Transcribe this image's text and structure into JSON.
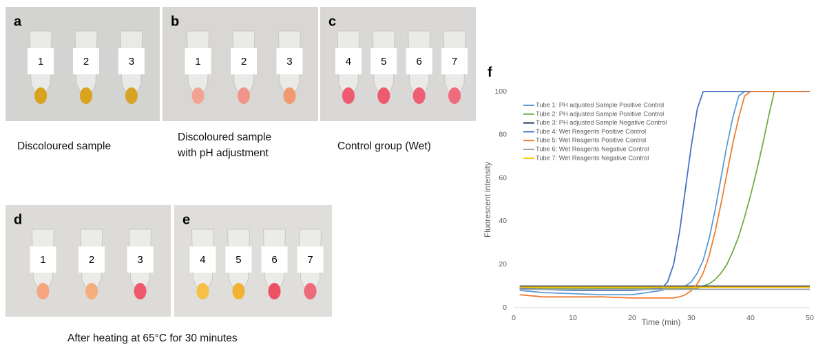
{
  "panels": [
    {
      "label": "a",
      "tubes": [
        "1",
        "2",
        "3"
      ]
    },
    {
      "label": "b",
      "tubes": [
        "1",
        "2",
        "3"
      ]
    },
    {
      "label": "c",
      "tubes": [
        "4",
        "5",
        "6",
        "7"
      ]
    },
    {
      "label": "d",
      "tubes": [
        "1",
        "2",
        "3"
      ]
    },
    {
      "label": "e",
      "tubes": [
        "4",
        "5",
        "6",
        "7"
      ]
    }
  ],
  "captions": [
    [
      "Discoloured sample"
    ],
    [
      "Discoloured  sample",
      "with pH adjustment"
    ],
    [
      "Control group (Wet)"
    ],
    [
      "After heating at 65°C for 30 minutes"
    ]
  ],
  "chart_data": {
    "type": "line",
    "panel_label": "f",
    "x_label": "Time (min)",
    "y_label": "Fluorescent intensity",
    "x": [
      1,
      5,
      10,
      15,
      20,
      25,
      26,
      27,
      28,
      29,
      30,
      31,
      32,
      33,
      34,
      35,
      36,
      37,
      38,
      39,
      40,
      41,
      42,
      43,
      44,
      45,
      50
    ],
    "xlim": [
      0,
      50
    ],
    "xticks": [
      0,
      10,
      20,
      30,
      40,
      50
    ],
    "ylim": [
      0,
      100
    ],
    "yticks": [
      0,
      20,
      40,
      60,
      80,
      100
    ],
    "series": [
      {
        "name": "Tube 1: PH adjusted Sample Positive Control",
        "color": "#5b9bd5",
        "values": [
          8,
          7,
          6.5,
          6,
          6,
          8,
          9,
          9,
          9,
          10,
          12,
          16,
          22,
          32,
          45,
          60,
          75,
          88,
          98,
          100,
          100,
          100,
          100,
          100,
          100,
          100,
          100
        ]
      },
      {
        "name": "Tube 2: PH adjusted Sample Positive Control",
        "color": "#70ad47",
        "values": [
          9,
          9,
          9,
          9,
          9,
          9,
          9,
          9,
          9,
          9,
          9,
          9,
          10,
          11,
          13,
          16,
          20,
          26,
          33,
          42,
          52,
          63,
          75,
          88,
          100,
          100,
          100
        ]
      },
      {
        "name": "Tube 3: PH adjusted Sample Negative Control",
        "color": "#1f3864",
        "values": [
          10,
          10,
          10,
          10,
          10,
          10,
          10,
          10,
          10,
          10,
          10,
          10,
          10,
          10,
          10,
          10,
          10,
          10,
          10,
          10,
          10,
          10,
          10,
          10,
          10,
          10,
          10
        ]
      },
      {
        "name": "Tube 4: Wet Reagents Positive Control",
        "color": "#4472c4",
        "values": [
          9,
          8.5,
          8,
          8,
          8,
          9,
          12,
          20,
          35,
          55,
          75,
          92,
          100,
          100,
          100,
          100,
          100,
          100,
          100,
          100,
          100,
          100,
          100,
          100,
          100,
          100,
          100
        ]
      },
      {
        "name": "Tube 5: Wet Reagents Positive Control",
        "color": "#ed7d31",
        "values": [
          6,
          5,
          5,
          5,
          4.5,
          4.5,
          4.5,
          4.5,
          5,
          6,
          8,
          11,
          16,
          24,
          35,
          48,
          62,
          76,
          88,
          98,
          100,
          100,
          100,
          100,
          100,
          100,
          100
        ]
      },
      {
        "name": "Tube 6: Wet Reagents Negative Control",
        "color": "#a5a5a5",
        "values": [
          8.5,
          8.5,
          8.5,
          8.5,
          8.5,
          8.5,
          8.5,
          8.5,
          8.5,
          8.5,
          8.5,
          8.5,
          8.5,
          8.5,
          8.5,
          8.5,
          8.5,
          8.5,
          8.5,
          8.5,
          8.5,
          8.5,
          8.5,
          8.5,
          8.5,
          8.5,
          8.5
        ]
      },
      {
        "name": "Tube 7: Wet Reagents Negative Control",
        "color": "#ffc000",
        "values": [
          9.5,
          9.5,
          9.5,
          9.5,
          9.5,
          9.5,
          9.5,
          9.5,
          9.5,
          9.5,
          9.5,
          9.5,
          9.5,
          9.5,
          9.5,
          9.5,
          9.5,
          9.5,
          9.5,
          9.5,
          9.5,
          9.5,
          9.5,
          9.5,
          9.5,
          9.5,
          9.5
        ]
      }
    ]
  }
}
